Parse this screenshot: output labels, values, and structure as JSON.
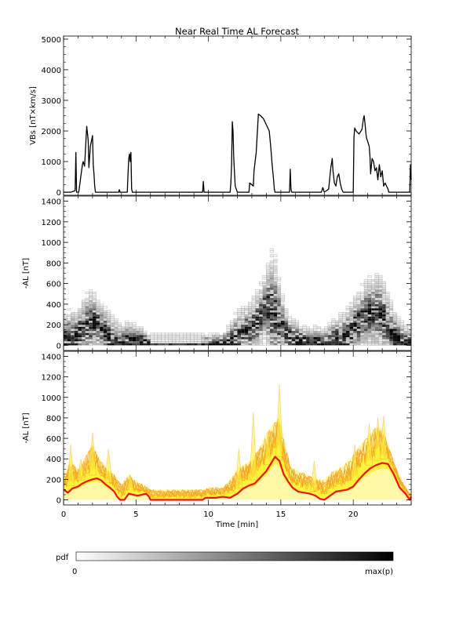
{
  "title": "Near Real Time AL Forecast",
  "chart_data": [
    {
      "type": "line",
      "panel": "vbs",
      "ylabel": "VBs [nT×km/s]",
      "xlim": [
        0,
        24
      ],
      "ylim": [
        -100,
        5100
      ],
      "yticks": [
        0,
        1000,
        2000,
        3000,
        4000,
        5000
      ],
      "grid": false,
      "series": [
        {
          "color": "#000000",
          "x": [
            0,
            0.5,
            0.8,
            0.85,
            0.9,
            1.05,
            1.3,
            1.35,
            1.45,
            1.6,
            1.7,
            1.75,
            1.85,
            2.0,
            2.05,
            2.1,
            2.15,
            2.2,
            2.3,
            3.8,
            3.85,
            3.9,
            4.4,
            4.45,
            4.5,
            4.55,
            4.6,
            4.65,
            4.7,
            4.75,
            9.6,
            9.65,
            9.7,
            11.5,
            11.55,
            11.6,
            11.65,
            11.7,
            11.75,
            11.85,
            12.0,
            12.8,
            12.85,
            13.1,
            13.15,
            13.3,
            13.45,
            13.6,
            13.8,
            14.0,
            14.2,
            14.3,
            14.4,
            14.5,
            14.55,
            14.6,
            14.7,
            14.75,
            15.6,
            15.65,
            15.7,
            15.75,
            17.8,
            17.9,
            18.0,
            18.3,
            18.45,
            18.55,
            18.6,
            18.7,
            18.8,
            18.9,
            19.0,
            19.1,
            19.2,
            19.3,
            20.0,
            20.05,
            20.1,
            20.2,
            20.4,
            20.6,
            20.7,
            20.75,
            20.8,
            20.9,
            21.1,
            21.15,
            21.2,
            21.3,
            21.4,
            21.5,
            21.6,
            21.7,
            21.8,
            21.9,
            22.0,
            22.1,
            22.2,
            22.4,
            22.45,
            23.9,
            23.95,
            24.0
          ],
          "y": [
            0,
            0,
            50,
            1300,
            0,
            0,
            900,
            1000,
            850,
            2150,
            1700,
            800,
            1500,
            1850,
            900,
            600,
            200,
            0,
            0,
            0,
            80,
            0,
            0,
            600,
            1100,
            1250,
            1000,
            1300,
            100,
            0,
            0,
            350,
            0,
            0,
            300,
            900,
            2300,
            2000,
            1100,
            200,
            0,
            0,
            300,
            200,
            700,
            1300,
            2550,
            2500,
            2400,
            2200,
            2000,
            1500,
            900,
            400,
            100,
            0,
            0,
            0,
            0,
            750,
            100,
            0,
            0,
            150,
            0,
            100,
            800,
            1100,
            700,
            300,
            200,
            500,
            600,
            300,
            100,
            0,
            0,
            1800,
            2100,
            2000,
            1900,
            2050,
            2400,
            2500,
            2300,
            1800,
            1500,
            1200,
            600,
            1100,
            1000,
            700,
            800,
            400,
            900,
            500,
            700,
            200,
            300,
            100,
            0,
            0,
            900,
            400
          ]
        }
      ]
    },
    {
      "type": "heatmap",
      "panel": "al_pdf",
      "ylabel": "-AL [nT]",
      "xlim": [
        0,
        24
      ],
      "ylim": [
        -50,
        1450
      ],
      "yticks": [
        0,
        200,
        400,
        600,
        800,
        1000,
        1200,
        1400
      ],
      "bin_width_min": 0.25,
      "bin_height_nT": 20,
      "colorbar": {
        "label": "pdf",
        "min_label": "0",
        "max_label": "max(p)"
      },
      "median_x": [
        0,
        0.5,
        1.0,
        1.5,
        2.0,
        2.5,
        3.0,
        3.5,
        4.0,
        4.5,
        5.0,
        5.5,
        6.0,
        9.5,
        10.0,
        11.0,
        11.5,
        12.0,
        12.5,
        13.0,
        13.5,
        14.0,
        14.5,
        15.0,
        15.5,
        16.0,
        16.5,
        17.0,
        17.5,
        18.0,
        18.5,
        19.0,
        19.5,
        20.0,
        20.5,
        21.0,
        21.5,
        22.0,
        22.5,
        23.0,
        23.5,
        24.0
      ],
      "median_y": [
        80,
        60,
        120,
        180,
        210,
        170,
        110,
        40,
        10,
        60,
        40,
        50,
        0,
        0,
        20,
        20,
        40,
        100,
        150,
        160,
        250,
        380,
        300,
        200,
        100,
        60,
        50,
        30,
        40,
        10,
        50,
        80,
        100,
        160,
        240,
        300,
        320,
        280,
        150,
        80,
        30,
        20
      ],
      "spread_x": [
        0,
        0.5,
        1.0,
        1.5,
        2.0,
        2.5,
        3.0,
        3.5,
        4.0,
        4.5,
        5.0,
        5.5,
        6.0,
        9.5,
        10.0,
        11.0,
        11.5,
        12.0,
        12.5,
        13.0,
        13.5,
        14.0,
        14.5,
        15.0,
        15.5,
        16.0,
        16.5,
        17.0,
        17.5,
        18.0,
        18.5,
        19.0,
        19.5,
        20.0,
        20.5,
        21.0,
        21.5,
        22.0,
        22.5,
        23.0,
        23.5,
        24.0
      ],
      "spread_y": [
        350,
        450,
        400,
        600,
        650,
        500,
        420,
        350,
        250,
        300,
        250,
        220,
        120,
        120,
        150,
        150,
        250,
        400,
        450,
        500,
        650,
        800,
        1150,
        650,
        350,
        300,
        250,
        200,
        250,
        200,
        300,
        350,
        400,
        550,
        650,
        750,
        800,
        800,
        550,
        350,
        250,
        200
      ]
    },
    {
      "type": "area",
      "panel": "al_forecast",
      "ylabel": "-AL [nT]",
      "xlabel": "Time [min]",
      "xlim": [
        0,
        24
      ],
      "ylim": [
        -50,
        1450
      ],
      "yticks": [
        0,
        200,
        400,
        600,
        800,
        1000,
        1200,
        1400
      ],
      "xticks": [
        0,
        5,
        10,
        15,
        20
      ],
      "colors": {
        "envelope": "#fff23b",
        "members": "#f5a623",
        "median": "#e8141b"
      },
      "series": [
        {
          "name": "median",
          "x": [
            0,
            0.3,
            0.6,
            1.0,
            1.3,
            1.6,
            2.0,
            2.3,
            2.6,
            2.9,
            3.2,
            3.5,
            3.7,
            3.9,
            4.2,
            4.5,
            4.8,
            5.1,
            5.4,
            5.7,
            5.9,
            6.0,
            9.6,
            9.8,
            10.5,
            11.0,
            11.5,
            12.0,
            12.4,
            12.8,
            13.2,
            13.6,
            14.0,
            14.3,
            14.6,
            14.9,
            15.2,
            15.5,
            15.8,
            16.2,
            16.6,
            17.0,
            17.4,
            17.7,
            18.0,
            18.4,
            18.8,
            19.2,
            19.6,
            20.0,
            20.4,
            20.8,
            21.2,
            21.6,
            22.0,
            22.4,
            22.8,
            23.2,
            23.6,
            23.9,
            24.0
          ],
          "y": [
            100,
            70,
            110,
            130,
            160,
            180,
            200,
            210,
            190,
            150,
            120,
            80,
            30,
            0,
            0,
            60,
            50,
            40,
            50,
            60,
            30,
            0,
            0,
            20,
            20,
            30,
            20,
            60,
            110,
            140,
            160,
            220,
            280,
            350,
            420,
            380,
            250,
            180,
            120,
            80,
            70,
            60,
            40,
            10,
            0,
            40,
            80,
            90,
            100,
            130,
            200,
            260,
            310,
            340,
            360,
            350,
            250,
            120,
            60,
            0,
            30
          ]
        },
        {
          "name": "envelope_upper",
          "x": [
            0,
            0.5,
            1.0,
            1.5,
            2.0,
            2.3,
            2.6,
            3.0,
            3.5,
            4.0,
            4.5,
            5.0,
            5.5,
            6.0,
            9.6,
            10.0,
            11.0,
            11.5,
            12.0,
            12.5,
            13.0,
            13.5,
            14.0,
            14.5,
            14.9,
            15.3,
            15.7,
            16.2,
            16.8,
            17.4,
            18.0,
            18.6,
            19.2,
            19.8,
            20.4,
            21.0,
            21.5,
            22.0,
            22.5,
            23.0,
            23.5,
            24.0
          ],
          "y": [
            250,
            380,
            300,
            420,
            550,
            450,
            380,
            300,
            250,
            150,
            250,
            180,
            150,
            100,
            100,
            120,
            120,
            200,
            300,
            350,
            400,
            500,
            650,
            750,
            800,
            550,
            320,
            280,
            250,
            200,
            200,
            280,
            320,
            400,
            520,
            620,
            700,
            700,
            500,
            300,
            150,
            50
          ]
        },
        {
          "name": "member_peaks",
          "x": [
            0.5,
            1.2,
            2.0,
            3.1,
            4.6,
            12.1,
            13.1,
            14.1,
            14.9,
            17.3,
            20.1,
            21.1,
            21.7,
            22.1
          ],
          "y": [
            540,
            400,
            660,
            500,
            250,
            500,
            850,
            670,
            1130,
            380,
            540,
            750,
            800,
            820
          ]
        }
      ]
    }
  ]
}
